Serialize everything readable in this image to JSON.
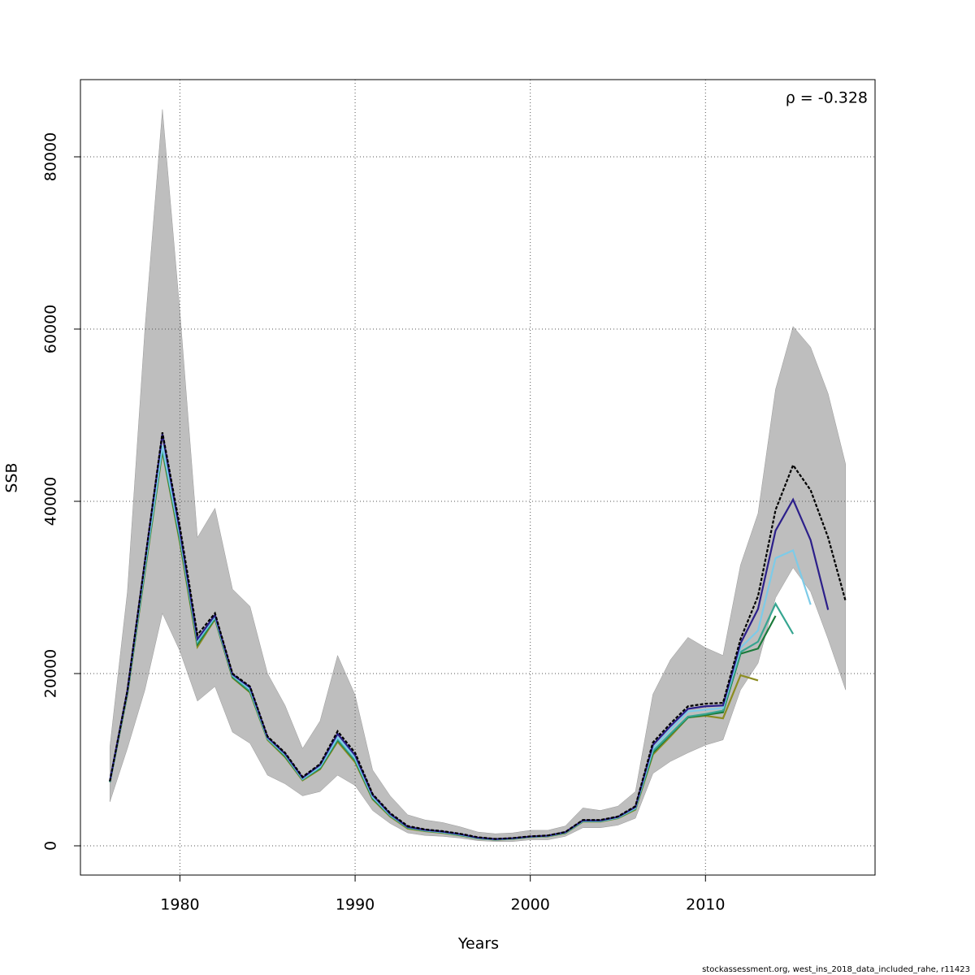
{
  "chart_data": {
    "type": "line",
    "xlabel": "Years",
    "ylabel": "SSB",
    "annotation": "ρ = -0.328",
    "footer": "stockassessment.org, west_ins_2018_data_included_rahe, r11423",
    "x": [
      1976,
      1977,
      1978,
      1979,
      1980,
      1981,
      1982,
      1983,
      1984,
      1985,
      1986,
      1987,
      1988,
      1989,
      1990,
      1991,
      1992,
      1993,
      1994,
      1995,
      1996,
      1997,
      1998,
      1999,
      2000,
      2001,
      2002,
      2003,
      2004,
      2005,
      2006,
      2007,
      2008,
      2009,
      2010,
      2011,
      2012,
      2013,
      2014,
      2015,
      2016,
      2017,
      2018
    ],
    "band": {
      "color": "#bebebe",
      "upper": [
        11500,
        29500,
        60000,
        85500,
        62000,
        35800,
        39200,
        29800,
        27800,
        20000,
        16300,
        11300,
        14500,
        22100,
        17500,
        8800,
        5800,
        3600,
        3000,
        2700,
        2200,
        1600,
        1400,
        1500,
        1800,
        1800,
        2300,
        4400,
        4100,
        4600,
        6300,
        17600,
        21600,
        24200,
        23000,
        22100,
        32600,
        38600,
        53000,
        60300,
        57900,
        52500,
        44300
      ],
      "lower": [
        5100,
        11300,
        18100,
        27000,
        22600,
        16800,
        18500,
        13200,
        11900,
        8200,
        7200,
        5800,
        6300,
        8200,
        7000,
        4100,
        2600,
        1500,
        1200,
        1100,
        900,
        600,
        500,
        500,
        700,
        700,
        1100,
        2100,
        2100,
        2400,
        3200,
        8400,
        9800,
        10800,
        11700,
        12300,
        18100,
        21200,
        28800,
        32300,
        29500,
        24000,
        18100
      ]
    },
    "series": [
      {
        "color": "#8c8c20",
        "values": [
          7400,
          17600,
          31800,
          45800,
          35200,
          23100,
          26300,
          19500,
          17800,
          12300,
          10300,
          7600,
          8900,
          12100,
          9700,
          5400,
          3400,
          2000,
          1700,
          1500,
          1200,
          850,
          700,
          800,
          1000,
          1100,
          1450,
          2800,
          2800,
          3200,
          4200,
          10600,
          12700,
          14900,
          15100,
          14800,
          19800,
          19200,
          null,
          null,
          null,
          null,
          null
        ]
      },
      {
        "color": "#1b7a3a",
        "values": [
          7400,
          17700,
          32000,
          46000,
          35500,
          23400,
          26400,
          19600,
          17900,
          12400,
          10400,
          7700,
          9000,
          12300,
          9900,
          5500,
          3500,
          2100,
          1750,
          1550,
          1250,
          880,
          730,
          830,
          1030,
          1130,
          1500,
          2850,
          2850,
          3250,
          4300,
          10800,
          12900,
          14900,
          15200,
          15500,
          22300,
          22900,
          26700,
          null,
          null,
          null,
          null
        ]
      },
      {
        "color": "#36a590",
        "values": [
          7400,
          17800,
          32200,
          46200,
          35800,
          23600,
          26500,
          19700,
          18000,
          12400,
          10500,
          7700,
          9100,
          12400,
          10000,
          5600,
          3500,
          2100,
          1750,
          1550,
          1250,
          880,
          730,
          830,
          1030,
          1130,
          1500,
          2850,
          2850,
          3250,
          4300,
          11000,
          13000,
          15000,
          15300,
          15700,
          22500,
          23700,
          28100,
          24600,
          null,
          null,
          null
        ]
      },
      {
        "color": "#7dcbe8",
        "values": [
          7500,
          17900,
          32500,
          46500,
          36000,
          23800,
          26600,
          19800,
          18200,
          12500,
          10600,
          7800,
          9200,
          12600,
          10200,
          5700,
          3600,
          2200,
          1800,
          1600,
          1300,
          900,
          750,
          850,
          1050,
          1150,
          1550,
          2900,
          2900,
          3300,
          4400,
          11300,
          13500,
          15600,
          15800,
          16000,
          23000,
          25000,
          33400,
          34300,
          28000,
          null,
          null
        ]
      },
      {
        "color": "#2c1f8a",
        "values": [
          7500,
          18000,
          33000,
          47800,
          36500,
          24000,
          26800,
          19900,
          18400,
          12600,
          10700,
          7900,
          9400,
          13000,
          10500,
          5900,
          3700,
          2200,
          1850,
          1650,
          1350,
          950,
          780,
          880,
          1080,
          1180,
          1580,
          2950,
          2950,
          3350,
          4500,
          11700,
          13900,
          15900,
          16200,
          16300,
          23500,
          27500,
          36600,
          40200,
          35500,
          27400,
          null
        ]
      },
      {
        "color": "#000000",
        "dashed": true,
        "values": [
          7500,
          18000,
          33000,
          48000,
          37000,
          24500,
          27000,
          20000,
          18500,
          12700,
          10800,
          8000,
          9500,
          13300,
          10800,
          6000,
          3800,
          2300,
          1900,
          1700,
          1400,
          1000,
          800,
          900,
          1100,
          1200,
          1600,
          3000,
          3000,
          3400,
          4600,
          12000,
          14200,
          16200,
          16500,
          16600,
          24000,
          29000,
          39000,
          44200,
          41300,
          35800,
          28400
        ]
      }
    ],
    "xlim": [
      1974.32,
      2019.68
    ],
    "ylim": [
      -3396,
      88962
    ],
    "xticks": [
      1980,
      1990,
      2000,
      2010
    ],
    "yticks": [
      0,
      20000,
      40000,
      60000,
      80000
    ],
    "grid": true
  }
}
